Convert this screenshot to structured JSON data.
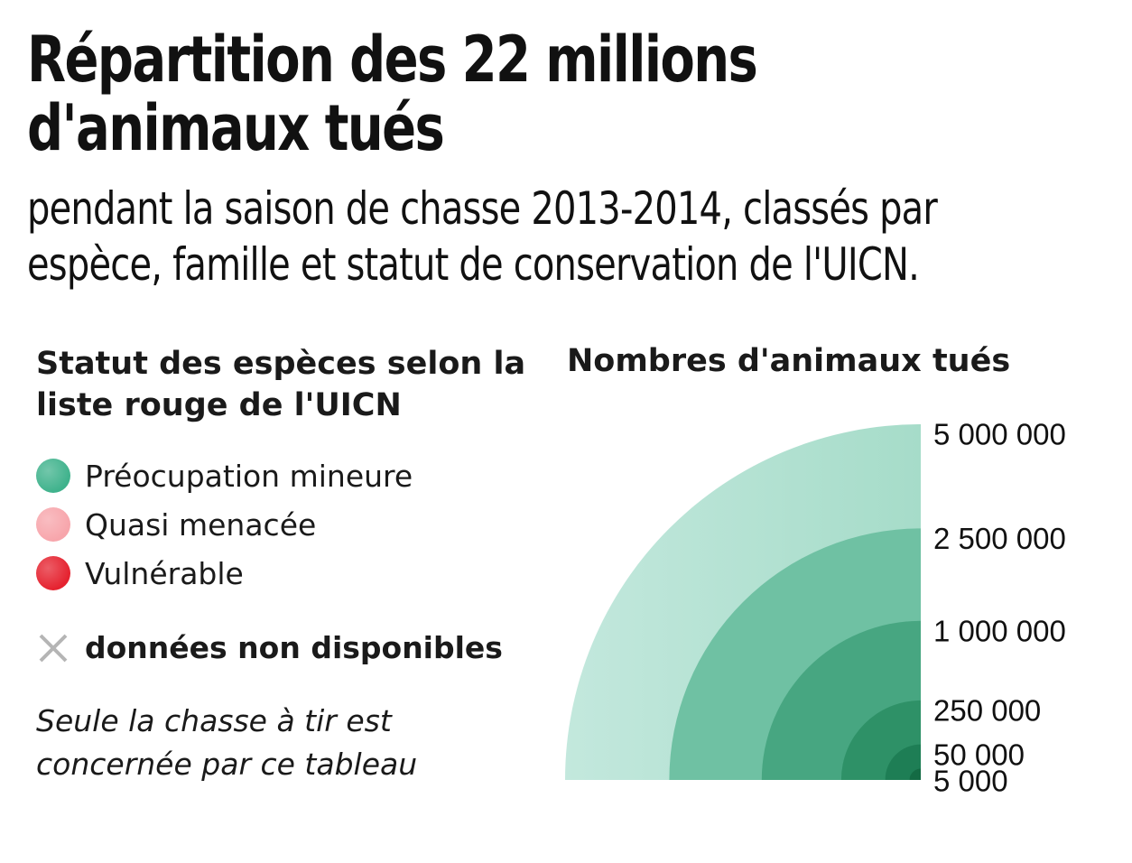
{
  "title": "Répartition des 22 millions d'animaux tués",
  "subtitle": "pendant la saison de chasse 2013-2014, classés par espèce, famille et statut de conservation de l'UICN.",
  "legend": {
    "title": "Statut des espèces selon la liste rouge de l'UICN",
    "items": [
      {
        "label": "Préocupation mineure",
        "color": "#3fb28c"
      },
      {
        "label": "Quasi menacée",
        "color": "#f7a5ab"
      },
      {
        "label": "Vulnérable",
        "color": "#e5222f"
      }
    ],
    "nodata_label": "données non disponibles",
    "nodata_icon": "cross-icon",
    "note": "Seule la chasse à tir est concernée par ce tableau"
  },
  "chart_data": {
    "type": "area",
    "title": "Nombres d'animaux tués",
    "shape": "nested quarter circles (area proportional to value)",
    "values": [
      5000000,
      2500000,
      1000000,
      250000,
      50000,
      5000
    ],
    "labels": [
      "5 000 000",
      "2 500 000",
      "1 000 000",
      "250 000",
      "50 000",
      "5 000"
    ],
    "colors": [
      "#bfe6da",
      "#6fc1a3",
      "#47a681",
      "#2e9167",
      "#1e7e55",
      "#146b44"
    ]
  }
}
